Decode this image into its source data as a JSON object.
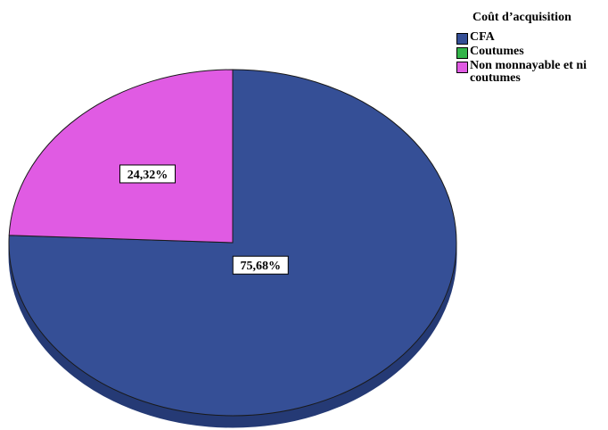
{
  "chart_data": {
    "type": "pie",
    "title": "",
    "legend_title": "Coût d’acquisition",
    "legend_position": "top-right",
    "categories": [
      "CFA",
      "Coutumes",
      "Non monnayable et ni coutumes"
    ],
    "values": [
      75.68,
      0,
      24.32
    ],
    "data_labels": [
      "75,68%",
      "",
      "24,32%"
    ],
    "colors": [
      "#354f96",
      "#33b54a",
      "#e05be3"
    ],
    "side_colors": [
      "#253a75",
      "#238a35",
      "#b03ab5"
    ]
  }
}
